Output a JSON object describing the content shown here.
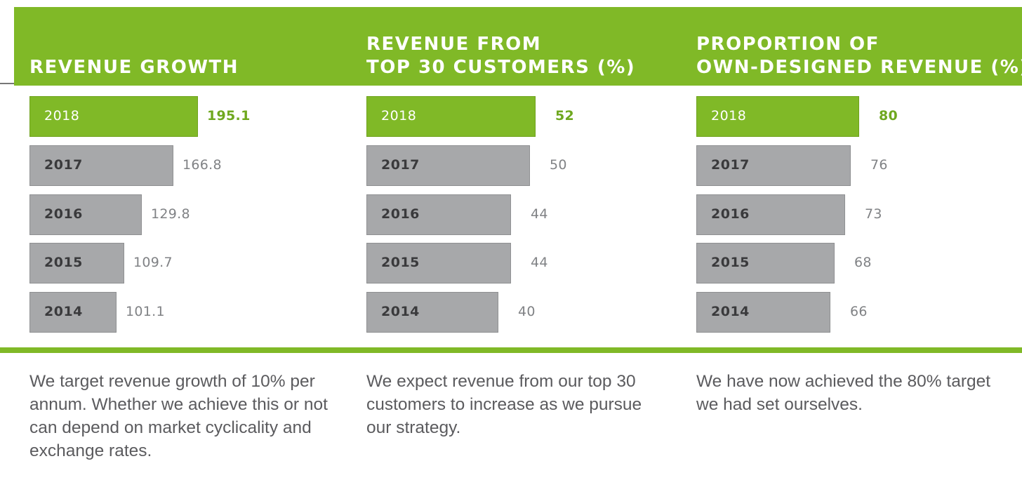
{
  "colors": {
    "accent_green": "#80b927",
    "bar_grey": "#a7a8aa",
    "highlight_value": "#6fa81f",
    "value_grey": "#808285",
    "note_text": "#5b5b5e"
  },
  "chart_data": [
    {
      "type": "bar",
      "orientation": "horizontal",
      "title_lines": [
        "REVENUE GROWTH"
      ],
      "categories": [
        "2018",
        "2017",
        "2016",
        "2015",
        "2014"
      ],
      "values": [
        195.1,
        166.8,
        129.8,
        109.7,
        101.1
      ],
      "value_labels": [
        "195.1",
        "166.8",
        "129.8",
        "109.7",
        "101.1"
      ],
      "highlight_category": "2018",
      "note": "We target revenue growth of 10% per annum. Whether we achieve this or not can depend on market cyclicality and exchange rates."
    },
    {
      "type": "bar",
      "orientation": "horizontal",
      "title_lines": [
        "REVENUE FROM",
        "TOP 30 CUSTOMERS (%)"
      ],
      "categories": [
        "2018",
        "2017",
        "2016",
        "2015",
        "2014"
      ],
      "values": [
        52,
        50,
        44,
        44,
        40
      ],
      "value_labels": [
        "52",
        "50",
        "44",
        "44",
        "40"
      ],
      "highlight_category": "2018",
      "note": "We expect revenue from our top 30 customers to increase as we pursue our strategy."
    },
    {
      "type": "bar",
      "orientation": "horizontal",
      "title_lines": [
        "PROPORTION OF",
        "OWN-DESIGNED REVENUE (%)"
      ],
      "categories": [
        "2018",
        "2017",
        "2016",
        "2015",
        "2014"
      ],
      "values": [
        80,
        76,
        73,
        68,
        66
      ],
      "value_labels": [
        "80",
        "76",
        "73",
        "68",
        "66"
      ],
      "highlight_category": "2018",
      "note": "We have now achieved the 80% target we had set ourselves."
    }
  ]
}
